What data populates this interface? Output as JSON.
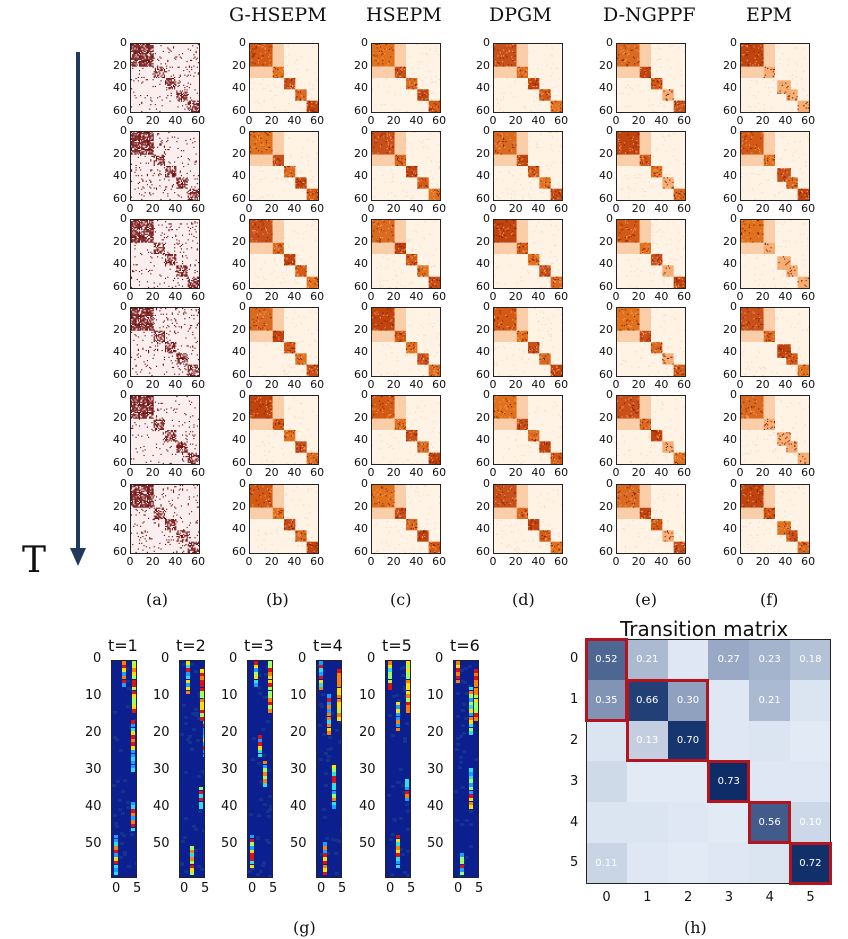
{
  "columns": [
    "G-HSEPM",
    "HSEPM",
    "DPGM",
    "D-NGPPF",
    "EPM"
  ],
  "time_axis_label": "T",
  "panel_y_ticks": [
    "0",
    "20",
    "40",
    "60"
  ],
  "panel_x_ticks": [
    "0",
    "20",
    "40",
    "60"
  ],
  "sublabels": [
    "(a)",
    "(b)",
    "(c)",
    "(d)",
    "(e)",
    "(f)",
    "(g)",
    "(h)"
  ],
  "time_steps": [
    "t=1",
    "t=2",
    "t=3",
    "t=4",
    "t=5",
    "t=6"
  ],
  "strip_y_ticks": [
    "0",
    "10",
    "20",
    "30",
    "40",
    "50"
  ],
  "strip_x_ticks": [
    "0",
    "5"
  ],
  "transition_matrix": {
    "title": "Transition matrix",
    "axis_labels": [
      "0",
      "1",
      "2",
      "3",
      "4",
      "5"
    ],
    "values": [
      [
        "0.52",
        "0.21",
        "",
        "0.27",
        "0.23",
        "0.18"
      ],
      [
        "0.35",
        "0.66",
        "0.30",
        "",
        "0.21",
        ""
      ],
      [
        "",
        "0.13",
        "0.70",
        "",
        "",
        ""
      ],
      [
        "",
        "",
        "",
        "0.73",
        "",
        ""
      ],
      [
        "",
        "",
        "",
        "",
        "0.56",
        "0.10"
      ],
      [
        "0.11",
        "",
        "",
        "",
        "",
        "0.72"
      ]
    ],
    "intensity": [
      [
        0.52,
        0.21,
        0.04,
        0.27,
        0.23,
        0.18
      ],
      [
        0.35,
        0.66,
        0.3,
        0.04,
        0.21,
        0.05
      ],
      [
        0.05,
        0.13,
        0.7,
        0.04,
        0.05,
        0.03
      ],
      [
        0.09,
        0.03,
        0.03,
        0.73,
        0.04,
        0.04
      ],
      [
        0.05,
        0.05,
        0.04,
        0.03,
        0.56,
        0.1
      ],
      [
        0.11,
        0.04,
        0.03,
        0.04,
        0.05,
        0.72
      ]
    ]
  },
  "colors": {
    "accent_arrow": "#1f3a5c",
    "highlight_box": "#b3141d",
    "dark_red": "#7a0a0a",
    "heat_orange": "#c0440e"
  }
}
